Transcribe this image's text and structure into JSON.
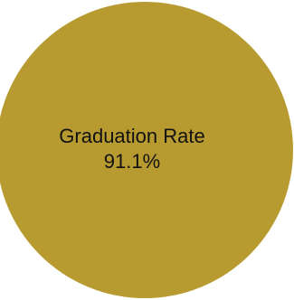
{
  "colors": {
    "slice": "#b89b30"
  },
  "chart_data": {
    "type": "pie",
    "slices": [
      {
        "label": "Graduation Rate",
        "value_label": "91.1%",
        "value": 91.1
      }
    ]
  }
}
